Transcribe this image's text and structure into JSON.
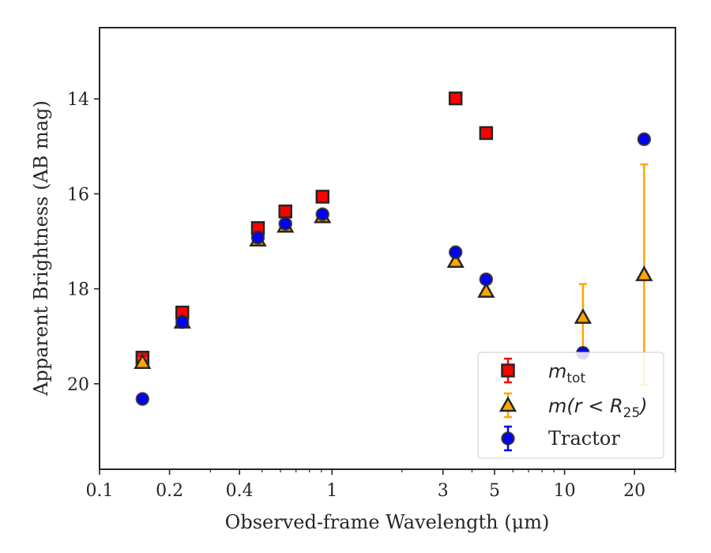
{
  "chart_data": {
    "type": "scatter",
    "xlabel": "Observed-frame Wavelength (μm)",
    "ylabel": "Apparent Brightness (AB mag)",
    "xscale": "log",
    "xlim": [
      0.1,
      30
    ],
    "ylim": [
      21.8,
      12.5
    ],
    "y_inverted": true,
    "xticks": [
      {
        "value": 0.1,
        "label": "0.1"
      },
      {
        "value": 0.2,
        "label": "0.2"
      },
      {
        "value": 0.4,
        "label": "0.4"
      },
      {
        "value": 1,
        "label": "1"
      },
      {
        "value": 3,
        "label": "3"
      },
      {
        "value": 5,
        "label": "5"
      },
      {
        "value": 10,
        "label": "10"
      },
      {
        "value": 20,
        "label": "20"
      }
    ],
    "yticks": [
      {
        "value": 14,
        "label": "14"
      },
      {
        "value": 16,
        "label": "16"
      },
      {
        "value": 18,
        "label": "18"
      },
      {
        "value": 20,
        "label": "20"
      }
    ],
    "legend_position": "lower-right",
    "series": [
      {
        "name": "m_tot",
        "legend_main": "m",
        "legend_sub": "tot",
        "marker": "square",
        "face_color": "#ff0000",
        "edge_color": "#262626",
        "error_color": "#ff0000",
        "points": [
          {
            "x": 0.153,
            "y": 19.45,
            "yerr": 0.08
          },
          {
            "x": 0.227,
            "y": 18.5,
            "yerr": 0.05
          },
          {
            "x": 0.48,
            "y": 16.72,
            "yerr": 0.04
          },
          {
            "x": 0.63,
            "y": 16.37,
            "yerr": 0.04
          },
          {
            "x": 0.91,
            "y": 16.06,
            "yerr": 0.04
          },
          {
            "x": 3.4,
            "y": 13.99,
            "yerr": 0.03
          },
          {
            "x": 4.6,
            "y": 14.72,
            "yerr": 0.03
          }
        ]
      },
      {
        "name": "m(r < R25)",
        "legend_main": "m(r < R",
        "legend_sub": "25",
        "legend_close": ")",
        "marker": "triangle",
        "face_color": "#ffa500",
        "edge_color": "#262626",
        "error_color": "#ffa500",
        "points": [
          {
            "x": 0.153,
            "y": 19.55,
            "yerr": 0.08
          },
          {
            "x": 0.227,
            "y": 18.7,
            "yerr": 0.05
          },
          {
            "x": 0.48,
            "y": 16.97,
            "yerr": 0.04
          },
          {
            "x": 0.63,
            "y": 16.68,
            "yerr": 0.04
          },
          {
            "x": 0.91,
            "y": 16.48,
            "yerr": 0.04
          },
          {
            "x": 3.4,
            "y": 17.42,
            "yerr": 0.03
          },
          {
            "x": 4.6,
            "y": 18.05,
            "yerr": 0.04
          },
          {
            "x": 12.0,
            "y": 18.6,
            "yerr": 0.7
          },
          {
            "x": 22.0,
            "y": 17.7,
            "yerr": 2.32
          }
        ]
      },
      {
        "name": "Tractor",
        "legend_main": "Tractor",
        "marker": "circle",
        "face_color": "#0000ff",
        "edge_color": "#262626",
        "error_color": "#0000ff",
        "points": [
          {
            "x": 0.153,
            "y": 20.32,
            "yerr": 0.08
          },
          {
            "x": 0.227,
            "y": 18.7,
            "yerr": 0.05
          },
          {
            "x": 0.48,
            "y": 16.92,
            "yerr": 0.04
          },
          {
            "x": 0.63,
            "y": 16.63,
            "yerr": 0.04
          },
          {
            "x": 0.91,
            "y": 16.43,
            "yerr": 0.04
          },
          {
            "x": 3.4,
            "y": 17.23,
            "yerr": 0.04
          },
          {
            "x": 4.6,
            "y": 17.8,
            "yerr": 0.05
          },
          {
            "x": 12.0,
            "y": 19.35,
            "yerr": 0.1
          },
          {
            "x": 22.0,
            "y": 14.85,
            "yerr": 0.08
          }
        ]
      }
    ]
  }
}
